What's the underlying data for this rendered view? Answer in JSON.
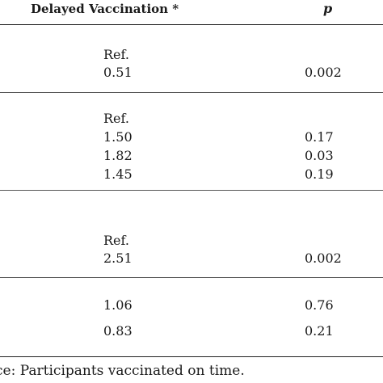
{
  "header": {
    "col_estimate": "Delayed Vaccination *",
    "col_p": "p"
  },
  "groups": [
    {
      "rows": [
        {
          "estimate": "Ref.",
          "p": ""
        },
        {
          "estimate": "0.51",
          "p": "0.002"
        }
      ]
    },
    {
      "rows": [
        {
          "estimate": "Ref.",
          "p": ""
        },
        {
          "estimate": "1.50",
          "p": "0.17"
        },
        {
          "estimate": "1.82",
          "p": "0.03"
        },
        {
          "estimate": "1.45",
          "p": "0.19"
        }
      ]
    },
    {
      "rows": [
        {
          "estimate": "Ref.",
          "p": ""
        },
        {
          "estimate": "2.51",
          "p": "0.002"
        }
      ]
    },
    {
      "rows": [
        {
          "estimate": "1.06",
          "p": "0.76"
        },
        {
          "estimate": "0.83",
          "p": "0.21"
        }
      ]
    }
  ],
  "footnote": "ce: Participants vaccinated on time."
}
